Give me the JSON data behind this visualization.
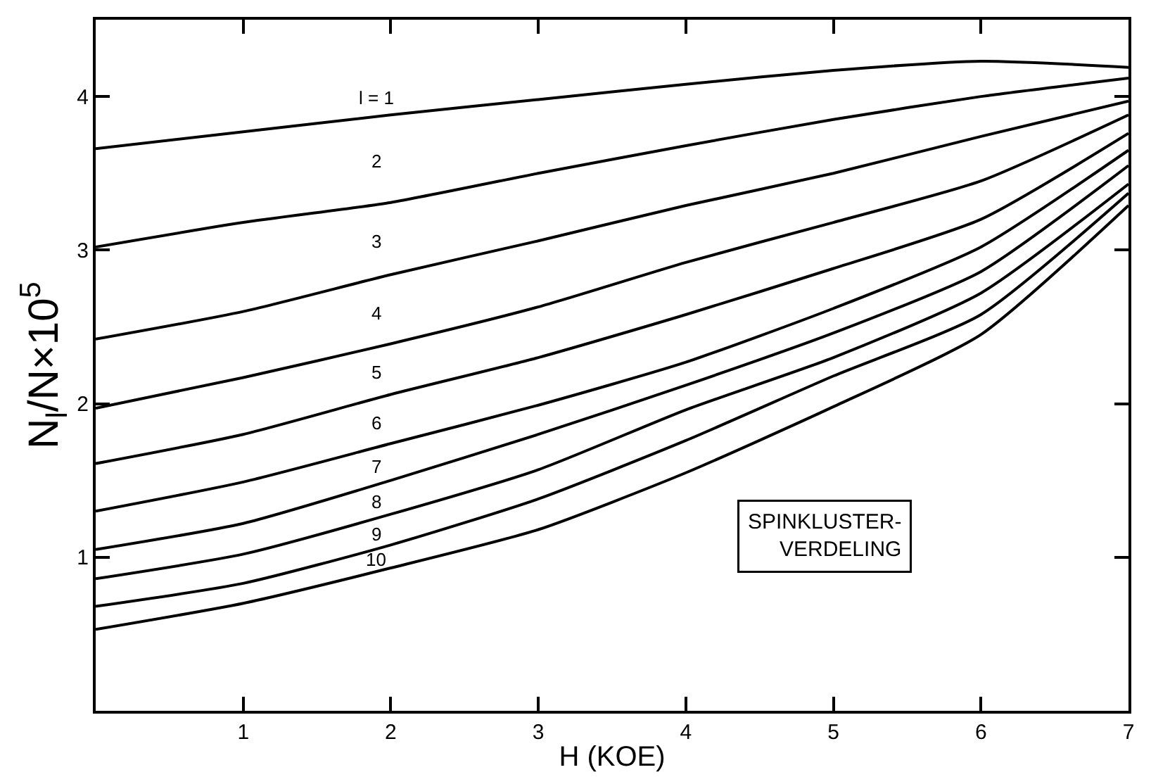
{
  "chart_data": {
    "type": "line",
    "xlabel": "H (KOE)",
    "ylabel": "N$_{l}$/N×10$^{5}$",
    "x": [
      0,
      1,
      2,
      3,
      4,
      5,
      6,
      7
    ],
    "series": [
      {
        "name": "l = 1",
        "color": "#000000",
        "values": [
          3.66,
          3.77,
          3.88,
          3.98,
          4.08,
          4.17,
          4.23,
          4.19
        ]
      },
      {
        "name": "2",
        "color": "#000000",
        "values": [
          3.02,
          3.18,
          3.31,
          3.5,
          3.68,
          3.85,
          4.0,
          4.12
        ]
      },
      {
        "name": "3",
        "color": "#000000",
        "values": [
          2.42,
          2.6,
          2.84,
          3.06,
          3.29,
          3.5,
          3.74,
          3.97
        ]
      },
      {
        "name": "4",
        "color": "#000000",
        "values": [
          1.97,
          2.17,
          2.39,
          2.63,
          2.92,
          3.18,
          3.45,
          3.88
        ]
      },
      {
        "name": "5",
        "color": "#000000",
        "values": [
          1.61,
          1.8,
          2.06,
          2.3,
          2.58,
          2.88,
          3.2,
          3.76
        ]
      },
      {
        "name": "6",
        "color": "#000000",
        "values": [
          1.3,
          1.49,
          1.74,
          1.99,
          2.27,
          2.62,
          3.02,
          3.65
        ]
      },
      {
        "name": "7",
        "color": "#000000",
        "values": [
          1.05,
          1.22,
          1.5,
          1.8,
          2.12,
          2.46,
          2.86,
          3.55
        ]
      },
      {
        "name": "8",
        "color": "#000000",
        "values": [
          0.86,
          1.02,
          1.28,
          1.57,
          1.96,
          2.3,
          2.72,
          3.43
        ]
      },
      {
        "name": "9",
        "color": "#000000",
        "values": [
          0.68,
          0.83,
          1.08,
          1.38,
          1.76,
          2.18,
          2.58,
          3.37
        ]
      },
      {
        "name": "10",
        "color": "#000000",
        "values": [
          0.53,
          0.7,
          0.93,
          1.18,
          1.55,
          1.98,
          2.45,
          3.29
        ]
      }
    ],
    "annotations": [
      "SPINKLUSTER-\nVERDELING"
    ],
    "xlim": [
      0,
      7
    ],
    "xticks": [
      1,
      2,
      3,
      4,
      5,
      6,
      7
    ],
    "ylim": [
      0,
      4.5
    ],
    "yticks": [
      1,
      2,
      3,
      4
    ],
    "grid": false,
    "legend": false,
    "marker": "none",
    "line_style": "solid"
  }
}
